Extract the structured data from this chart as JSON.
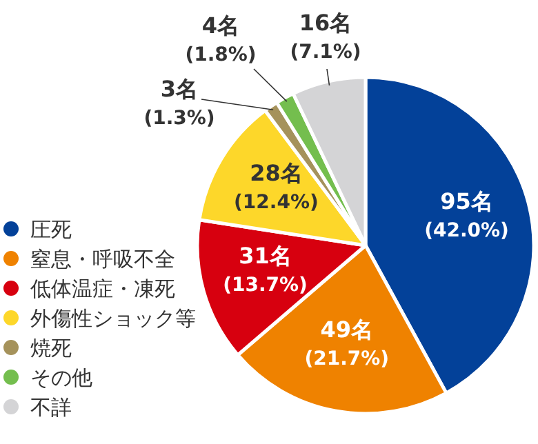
{
  "chart_data": {
    "type": "pie",
    "categories": [
      "圧死",
      "窒息・呼吸不全",
      "低体温症・凍死",
      "外傷性ショック等",
      "焼死",
      "その他",
      "不詳"
    ],
    "values": [
      95,
      49,
      31,
      28,
      3,
      4,
      16
    ],
    "colors": [
      "#034199",
      "#ef8200",
      "#d7000f",
      "#fdd72a",
      "#a5925b",
      "#74be4e",
      "#d4d4d6"
    ],
    "value_labels": [
      "95名 (42.0%)",
      "49名 (21.7%)",
      "31名 (13.7%)",
      "28名 (12.4%)",
      "3名 (1.3%)",
      "4名 (1.8%)",
      "16名 (7.1%)"
    ],
    "legend": "left"
  }
}
